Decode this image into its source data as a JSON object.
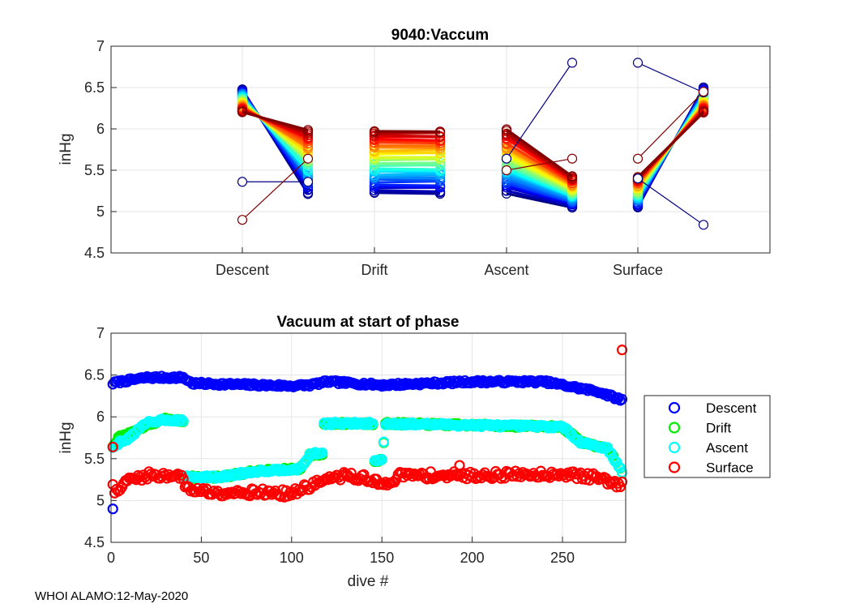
{
  "footer": "WHOI ALAMO:12-May-2020",
  "chart_data": [
    {
      "type": "line",
      "title": "9040:Vaccum",
      "ylabel": "inHg",
      "xlabel": "",
      "categories": [
        "Descent",
        "Drift",
        "Ascent",
        "Surface"
      ],
      "ylim": [
        4.5,
        7
      ],
      "yticks": [
        4.5,
        5,
        5.5,
        6,
        6.5,
        7
      ],
      "yticklabels": [
        "4.5",
        "5",
        "5.5",
        "6",
        "6.5",
        "7"
      ],
      "grid": true,
      "series_note": "one colored line per dive, colormap jet, connecting phase start and end vacuum",
      "stages": [
        {
          "name": "Descent",
          "start_range": [
            6.2,
            6.48
          ],
          "end_range": [
            5.22,
            5.98
          ]
        },
        {
          "name": "Drift",
          "start_range": [
            5.22,
            5.98
          ],
          "end_range": [
            5.22,
            5.98
          ]
        },
        {
          "name": "Ascent",
          "start_range": [
            5.22,
            5.98
          ],
          "end_range": [
            5.05,
            5.42
          ]
        },
        {
          "name": "Surface",
          "start_range": [
            5.05,
            5.42
          ],
          "end_range": [
            6.2,
            6.5
          ]
        }
      ],
      "outliers": [
        {
          "stage": "Descent",
          "start": 5.36,
          "end": 5.36,
          "color": "#000080"
        },
        {
          "stage": "Descent",
          "start": 4.9,
          "end": 5.64,
          "color": "#800000"
        },
        {
          "stage": "Ascent",
          "start": 5.64,
          "end": 6.8,
          "color": "#000080"
        },
        {
          "stage": "Ascent",
          "start": 5.5,
          "end": 5.64,
          "color": "#800000"
        },
        {
          "stage": "Surface",
          "start": 6.8,
          "end": 6.44,
          "color": "#000080"
        },
        {
          "stage": "Surface",
          "start": 5.4,
          "end": 4.84,
          "color": "#000080"
        },
        {
          "stage": "Surface",
          "start": 5.64,
          "end": 6.45,
          "color": "#800000"
        }
      ]
    },
    {
      "type": "scatter",
      "title": "Vacuum at start of phase",
      "xlabel": "dive #",
      "ylabel": "inHg",
      "xlim": [
        0,
        285
      ],
      "ylim": [
        4.5,
        7
      ],
      "xticks": [
        0,
        50,
        100,
        150,
        200,
        250
      ],
      "xticklabels": [
        "0",
        "50",
        "100",
        "150",
        "200",
        "250"
      ],
      "yticks": [
        4.5,
        5,
        5.5,
        6,
        6.5,
        7
      ],
      "yticklabels": [
        "4.5",
        "5",
        "5.5",
        "6",
        "6.5",
        "7"
      ],
      "grid": true,
      "legend_position": "right",
      "n_dives": 283,
      "series": [
        {
          "name": "Descent",
          "color": "#0000ff",
          "trend": [
            [
              1,
              6.4
            ],
            [
              5,
              6.42
            ],
            [
              20,
              6.47
            ],
            [
              40,
              6.47
            ],
            [
              45,
              6.4
            ],
            [
              100,
              6.37
            ],
            [
              110,
              6.38
            ],
            [
              120,
              6.42
            ],
            [
              150,
              6.38
            ],
            [
              200,
              6.42
            ],
            [
              240,
              6.42
            ],
            [
              270,
              6.3
            ],
            [
              283,
              6.2
            ]
          ],
          "outliers": [
            [
              1,
              4.9
            ]
          ]
        },
        {
          "name": "Drift",
          "color": "#00ee00",
          "trend": [
            [
              1,
              5.65
            ],
            [
              5,
              5.78
            ],
            [
              10,
              5.8
            ],
            [
              20,
              5.9
            ],
            [
              30,
              5.97
            ],
            [
              40,
              5.95
            ],
            [
              41,
              5.28
            ],
            [
              60,
              5.28
            ],
            [
              80,
              5.35
            ],
            [
              105,
              5.38
            ],
            [
              110,
              5.55
            ],
            [
              117,
              5.55
            ],
            [
              118,
              5.92
            ],
            [
              145,
              5.92
            ],
            [
              146,
              5.48
            ],
            [
              150,
              5.48
            ],
            [
              152,
              5.92
            ],
            [
              250,
              5.88
            ],
            [
              260,
              5.7
            ],
            [
              275,
              5.62
            ],
            [
              283,
              5.35
            ]
          ],
          "outliers": []
        },
        {
          "name": "Ascent",
          "color": "#00ffff",
          "trend": [
            [
              1,
              5.62
            ],
            [
              5,
              5.7
            ],
            [
              10,
              5.75
            ],
            [
              20,
              5.93
            ],
            [
              30,
              5.97
            ],
            [
              40,
              5.95
            ],
            [
              41,
              5.28
            ],
            [
              60,
              5.28
            ],
            [
              80,
              5.35
            ],
            [
              105,
              5.38
            ],
            [
              110,
              5.55
            ],
            [
              117,
              5.57
            ],
            [
              118,
              5.92
            ],
            [
              145,
              5.92
            ],
            [
              146,
              5.48
            ],
            [
              150,
              5.48
            ],
            [
              152,
              5.92
            ],
            [
              250,
              5.88
            ],
            [
              260,
              5.7
            ],
            [
              275,
              5.62
            ],
            [
              283,
              5.35
            ]
          ],
          "outliers": []
        },
        {
          "name": "Surface",
          "color": "#ff0000",
          "trend": [
            [
              1,
              5.15
            ],
            [
              3,
              5.1
            ],
            [
              10,
              5.25
            ],
            [
              20,
              5.3
            ],
            [
              38,
              5.3
            ],
            [
              42,
              5.15
            ],
            [
              55,
              5.1
            ],
            [
              80,
              5.1
            ],
            [
              100,
              5.08
            ],
            [
              115,
              5.22
            ],
            [
              130,
              5.3
            ],
            [
              145,
              5.25
            ],
            [
              150,
              5.17
            ],
            [
              160,
              5.3
            ],
            [
              200,
              5.3
            ],
            [
              250,
              5.32
            ],
            [
              270,
              5.27
            ],
            [
              283,
              5.18
            ]
          ],
          "outliers": [
            [
              1,
              5.64
            ],
            [
              283,
              6.8
            ],
            [
              193,
              5.42
            ]
          ]
        }
      ]
    }
  ]
}
